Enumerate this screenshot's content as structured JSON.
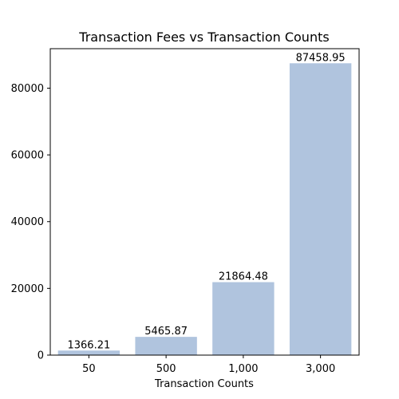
{
  "chart_data": {
    "type": "bar",
    "title": "Transaction Fees vs Transaction Counts",
    "xlabel": "Transaction Counts",
    "ylabel": "",
    "categories": [
      "50",
      "500",
      "1,000",
      "3,000"
    ],
    "values": [
      1366.21,
      5465.87,
      21864.48,
      87458.95
    ],
    "data_labels": [
      "1366.21",
      "5465.87",
      "21864.48",
      "87458.95"
    ],
    "yticks": [
      0,
      20000,
      40000,
      60000,
      80000
    ],
    "ytick_labels": [
      "0",
      "20000",
      "40000",
      "60000",
      "80000"
    ],
    "ylim": [
      0,
      91832
    ],
    "bar_color": "#b0c4de",
    "grid": false,
    "legend": "none"
  }
}
